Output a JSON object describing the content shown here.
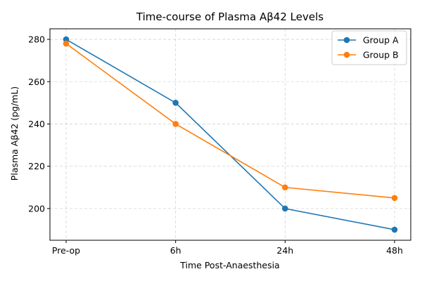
{
  "chart_data": {
    "type": "line",
    "title": "Time-course of Plasma Aβ42 Levels",
    "xlabel": "Time Post-Anaesthesia",
    "ylabel": "Plasma Aβ42 (pg/mL)",
    "categories": [
      "Pre-op",
      "6h",
      "24h",
      "48h"
    ],
    "yticks": [
      200,
      220,
      240,
      260,
      280
    ],
    "ylim": [
      185,
      285
    ],
    "grid": true,
    "legend_position": "top-right",
    "series": [
      {
        "name": "Group A",
        "color": "#1f77b4",
        "values": [
          280,
          250,
          200,
          190
        ]
      },
      {
        "name": "Group B",
        "color": "#ff7f0e",
        "values": [
          278,
          240,
          210,
          205
        ]
      }
    ]
  }
}
